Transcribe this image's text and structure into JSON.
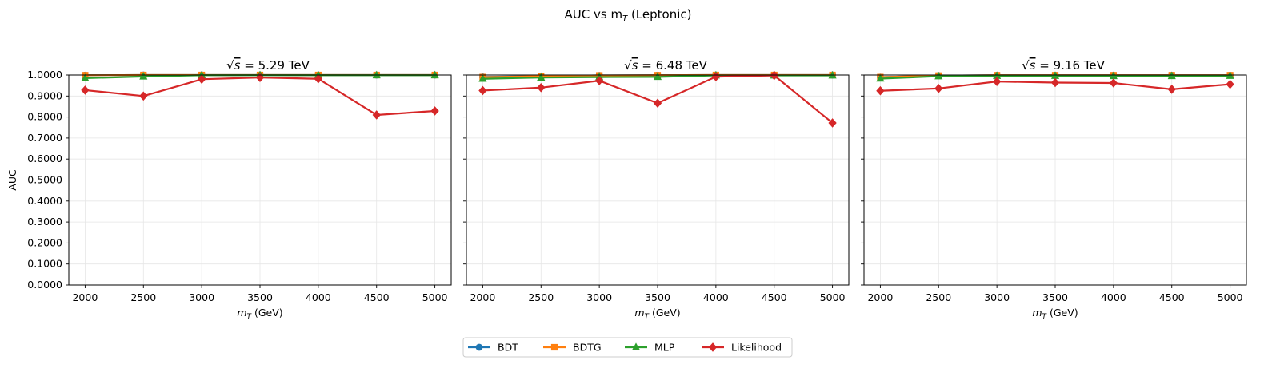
{
  "figure": {
    "suptitle_prefix": "AUC vs m",
    "suptitle_sub": "T",
    "suptitle_suffix": " (Leptonic)"
  },
  "chart_data": [
    {
      "type": "line",
      "title_prefix": "√s",
      "title_value": " = 5.29 TeV",
      "xlabel_var": "m",
      "xlabel_sub": "T",
      "xlabel_unit": " (GeV)",
      "ylabel": "AUC",
      "x": [
        2000,
        2500,
        3000,
        3500,
        4000,
        4500,
        5000
      ],
      "xlim": [
        1860,
        5140
      ],
      "ylim": [
        0,
        1
      ],
      "grid": true,
      "series": [
        {
          "name": "BDT",
          "values": [
            0.999,
            1.0,
            1.0,
            1.0,
            1.0,
            1.0,
            1.0
          ]
        },
        {
          "name": "BDTG",
          "values": [
            0.999,
            1.0,
            1.0,
            1.0,
            1.0,
            1.0,
            1.0
          ]
        },
        {
          "name": "MLP",
          "values": [
            0.985,
            0.993,
            0.999,
            0.999,
            0.999,
            0.999,
            0.999
          ]
        },
        {
          "name": "Likelihood",
          "values": [
            0.928,
            0.9,
            0.98,
            0.988,
            0.982,
            0.81,
            0.829
          ]
        }
      ]
    },
    {
      "type": "line",
      "title_prefix": "√s",
      "title_value": " = 6.48 TeV",
      "xlabel_var": "m",
      "xlabel_sub": "T",
      "xlabel_unit": " (GeV)",
      "ylabel": "",
      "x": [
        2000,
        2500,
        3000,
        3500,
        4000,
        4500,
        5000
      ],
      "xlim": [
        1860,
        5140
      ],
      "ylim": [
        0,
        1
      ],
      "grid": true,
      "series": [
        {
          "name": "BDT",
          "values": [
            0.991,
            0.995,
            0.998,
            0.999,
            1.0,
            1.0,
            1.0
          ]
        },
        {
          "name": "BDTG",
          "values": [
            0.99,
            0.995,
            0.998,
            0.999,
            1.0,
            1.0,
            1.0
          ]
        },
        {
          "name": "MLP",
          "values": [
            0.982,
            0.988,
            0.99,
            0.991,
            0.998,
            0.998,
            0.998
          ]
        },
        {
          "name": "Likelihood",
          "values": [
            0.926,
            0.94,
            0.973,
            0.866,
            0.992,
            0.998,
            0.772
          ]
        }
      ]
    },
    {
      "type": "line",
      "title_prefix": "√s",
      "title_value": " = 9.16 TeV",
      "xlabel_var": "m",
      "xlabel_sub": "T",
      "xlabel_unit": " (GeV)",
      "ylabel": "",
      "x": [
        2000,
        2500,
        3000,
        3500,
        4000,
        4500,
        5000
      ],
      "xlim": [
        1860,
        5140
      ],
      "ylim": [
        0,
        1
      ],
      "grid": true,
      "series": [
        {
          "name": "BDT",
          "values": [
            0.99,
            0.997,
            0.999,
            0.999,
            0.999,
            0.999,
            0.999
          ]
        },
        {
          "name": "BDTG",
          "values": [
            0.99,
            0.997,
            0.999,
            0.999,
            0.999,
            0.999,
            0.999
          ]
        },
        {
          "name": "MLP",
          "values": [
            0.983,
            0.994,
            0.996,
            0.996,
            0.995,
            0.995,
            0.996
          ]
        },
        {
          "name": "Likelihood",
          "values": [
            0.925,
            0.936,
            0.969,
            0.964,
            0.962,
            0.932,
            0.956
          ]
        }
      ]
    }
  ],
  "yticks": [
    0,
    0.1,
    0.2,
    0.3,
    0.4,
    0.5,
    0.6,
    0.7,
    0.8,
    0.9,
    1.0
  ],
  "ytick_labels": [
    "0.0000",
    "0.1000",
    "0.2000",
    "0.3000",
    "0.4000",
    "0.5000",
    "0.6000",
    "0.7000",
    "0.8000",
    "0.9000",
    "1.0000"
  ],
  "xtick_labels": [
    "2000",
    "2500",
    "3000",
    "3500",
    "4000",
    "4500",
    "5000"
  ],
  "legend": {
    "position": "bottom-center",
    "entries": [
      {
        "name": "BDT",
        "color": "#1f77b4",
        "marker": "circle"
      },
      {
        "name": "BDTG",
        "color": "#ff7f0e",
        "marker": "square"
      },
      {
        "name": "MLP",
        "color": "#2ca02c",
        "marker": "triangle"
      },
      {
        "name": "Likelihood",
        "color": "#d62728",
        "marker": "diamond"
      }
    ]
  }
}
